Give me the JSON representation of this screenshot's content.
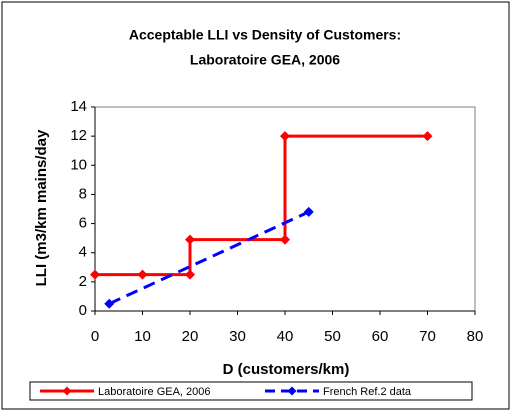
{
  "chart_data": {
    "type": "line",
    "title": [
      "Acceptable LLI vs Density of Customers:",
      "Laboratoire GEA, 2006"
    ],
    "x_label": "D (customers/km)",
    "y_label": "LLI (m3/km mains/day",
    "xlim": [
      0,
      80
    ],
    "xticks": [
      0,
      10,
      20,
      30,
      40,
      50,
      60,
      70,
      80
    ],
    "ylim": [
      0,
      14
    ],
    "yticks": [
      0,
      2,
      4,
      6,
      8,
      10,
      12,
      14
    ],
    "grid": false,
    "legend": "bottom",
    "series": [
      {
        "name": "Laboratoire GEA, 2006",
        "color": "#ff0000",
        "dash": false,
        "x": [
          0,
          10,
          20,
          20,
          40,
          40,
          70
        ],
        "values": [
          2.5,
          2.5,
          2.5,
          4.9,
          4.9,
          12,
          12
        ]
      },
      {
        "name": "French Ref.2 data",
        "color": "#0000ff",
        "dash": true,
        "x": [
          3,
          45
        ],
        "values": [
          0.5,
          6.8
        ]
      }
    ]
  }
}
